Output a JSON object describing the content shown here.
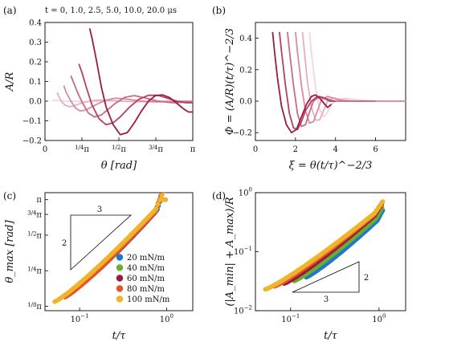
{
  "chart_data": [
    {
      "panel_label": "(a)",
      "type": "line",
      "caption": "t = 0, 1.0, 2.5, 5.0, 10.0, 20.0 μs",
      "xlabel": "θ [rad]",
      "ylabel": "A/R",
      "xlim": [
        0,
        3.1416
      ],
      "ylim": [
        -0.2,
        0.4
      ],
      "x_ticks": [
        {
          "v": 0,
          "w": "0"
        },
        {
          "v": 0.7854,
          "w": "π",
          "f": "1/4"
        },
        {
          "v": 1.5708,
          "w": "π",
          "f": "1/2"
        },
        {
          "v": 2.3562,
          "w": "π",
          "f": "3/4"
        },
        {
          "v": 3.1416,
          "w": "π"
        }
      ],
      "y_ticks": [
        {
          "v": 0.4,
          "t": "0.4"
        },
        {
          "v": 0.3,
          "t": "0.3"
        },
        {
          "v": 0.2,
          "t": "0.2"
        },
        {
          "v": 0.1,
          "t": "0.1"
        },
        {
          "v": 0.0,
          "t": "0.0"
        },
        {
          "v": -0.1,
          "t": "−0.1"
        },
        {
          "v": -0.2,
          "t": "−0.2"
        }
      ],
      "series": [
        {
          "color": "#f3d6dd",
          "x": [
            0.16,
            0.2,
            0.25,
            0.32,
            0.4,
            0.5,
            0.65,
            0.8,
            1.0,
            1.2,
            1.4,
            1.6,
            1.8,
            2.0,
            2.2,
            2.4,
            2.6,
            2.8,
            3.0,
            3.14
          ],
          "y": [
            0.005,
            0.005,
            0.004,
            0.002,
            0.001,
            0.0,
            -0.001,
            -0.002,
            -0.002,
            -0.001,
            0.0,
            0.001,
            0.0,
            0.0,
            0.0,
            0.0,
            0.0,
            0.0,
            0.0,
            0.0
          ]
        },
        {
          "color": "#e8aebe",
          "x": [
            0.26,
            0.3,
            0.36,
            0.44,
            0.52,
            0.62,
            0.75,
            0.9,
            1.05,
            1.25,
            1.5,
            1.8,
            2.1,
            2.4,
            2.7,
            3.0,
            3.14
          ],
          "y": [
            0.045,
            0.02,
            -0.005,
            -0.022,
            -0.028,
            -0.024,
            -0.012,
            -0.002,
            0.004,
            0.005,
            0.002,
            -0.002,
            -0.003,
            -0.001,
            0.0,
            0.0,
            0.0
          ]
        },
        {
          "color": "#d98aa2",
          "x": [
            0.4,
            0.45,
            0.55,
            0.65,
            0.75,
            0.87,
            1.0,
            1.15,
            1.3,
            1.5,
            1.7,
            2.0,
            2.3,
            2.6,
            3.0,
            3.14
          ],
          "y": [
            0.08,
            0.045,
            0.0,
            -0.035,
            -0.05,
            -0.045,
            -0.028,
            -0.01,
            0.005,
            0.015,
            0.012,
            0.002,
            -0.004,
            -0.003,
            0.0,
            0.0
          ]
        },
        {
          "color": "#c86b85",
          "x": [
            0.55,
            0.6,
            0.7,
            0.8,
            0.92,
            1.05,
            1.2,
            1.35,
            1.5,
            1.7,
            1.9,
            2.1,
            2.4,
            2.7,
            3.0,
            3.14
          ],
          "y": [
            0.13,
            0.1,
            0.04,
            -0.01,
            -0.06,
            -0.08,
            -0.07,
            -0.04,
            -0.01,
            0.02,
            0.028,
            0.018,
            0.0,
            -0.008,
            -0.005,
            -0.004
          ]
        },
        {
          "color": "#b3405f",
          "x": [
            0.72,
            0.78,
            0.88,
            1.0,
            1.15,
            1.3,
            1.45,
            1.6,
            1.8,
            2.0,
            2.2,
            2.4,
            2.6,
            2.8,
            3.0,
            3.14
          ],
          "y": [
            0.19,
            0.15,
            0.07,
            -0.02,
            -0.09,
            -0.12,
            -0.11,
            -0.08,
            -0.03,
            0.01,
            0.03,
            0.03,
            0.015,
            0.0,
            -0.008,
            -0.008
          ]
        },
        {
          "color": "#9b1b3e",
          "x": [
            0.95,
            1.0,
            1.1,
            1.2,
            1.3,
            1.45,
            1.6,
            1.75,
            1.9,
            2.05,
            2.2,
            2.35,
            2.5,
            2.65,
            2.8,
            2.95,
            3.05,
            3.14
          ],
          "y": [
            0.37,
            0.32,
            0.2,
            0.07,
            -0.03,
            -0.12,
            -0.17,
            -0.16,
            -0.11,
            -0.05,
            0.0,
            0.028,
            0.032,
            0.018,
            -0.01,
            -0.04,
            -0.055,
            -0.055
          ]
        }
      ]
    },
    {
      "panel_label": "(b)",
      "type": "line",
      "xlabel": "ξ = θ(t/τ)^−2/3",
      "ylabel": "Φ = (A/R)(t/τ)^−2/3",
      "xlim": [
        0,
        7.5
      ],
      "ylim": [
        -0.25,
        0.5
      ],
      "x_ticks": [
        {
          "v": 0,
          "t": "0"
        },
        {
          "v": 2,
          "t": "2"
        },
        {
          "v": 4,
          "t": "4"
        },
        {
          "v": 6,
          "t": "6"
        }
      ],
      "y_ticks": [
        {
          "v": 0.4,
          "t": "0.4"
        },
        {
          "v": 0.2,
          "t": "0.2"
        },
        {
          "v": 0.0,
          "t": "0.0"
        },
        {
          "v": -0.2,
          "t": "−0.2"
        }
      ],
      "series": [
        {
          "color": "#f3d6dd",
          "x": [
            2.7,
            2.8,
            3.0,
            3.2,
            3.4,
            3.6,
            3.8,
            4.0,
            4.5,
            5.0,
            6.0,
            7.0,
            7.5
          ],
          "y": [
            0.44,
            0.3,
            0.09,
            -0.05,
            -0.1,
            -0.07,
            -0.02,
            0.0,
            0.02,
            0.01,
            0.0,
            0.0,
            0.0
          ]
        },
        {
          "color": "#e8aebe",
          "x": [
            2.35,
            2.45,
            2.6,
            2.8,
            3.0,
            3.2,
            3.4,
            3.6,
            3.9,
            4.3,
            5.0,
            6.0,
            7.0,
            7.5
          ],
          "y": [
            0.44,
            0.31,
            0.12,
            -0.04,
            -0.12,
            -0.12,
            -0.06,
            0.0,
            0.02,
            0.01,
            0.0,
            0.0,
            0.0,
            0.0
          ]
        },
        {
          "color": "#d98aa2",
          "x": [
            2.0,
            2.1,
            2.3,
            2.5,
            2.7,
            2.9,
            3.1,
            3.3,
            3.6,
            4.0,
            4.5,
            5.5,
            6.5,
            7.5
          ],
          "y": [
            0.44,
            0.31,
            0.1,
            -0.06,
            -0.14,
            -0.13,
            -0.06,
            0.01,
            0.03,
            0.015,
            0.0,
            0.0,
            0.0,
            0.0
          ]
        },
        {
          "color": "#c86b85",
          "x": [
            1.6,
            1.7,
            1.9,
            2.1,
            2.3,
            2.5,
            2.7,
            2.9,
            3.2,
            3.5,
            3.9,
            4.4,
            5.0,
            6.0
          ],
          "y": [
            0.44,
            0.32,
            0.1,
            -0.08,
            -0.16,
            -0.15,
            -0.07,
            0.0,
            0.03,
            0.02,
            0.0,
            0.0,
            0.0,
            0.0
          ]
        },
        {
          "color": "#b3405f",
          "x": [
            1.2,
            1.3,
            1.5,
            1.7,
            1.9,
            2.1,
            2.3,
            2.5,
            2.8,
            3.1,
            3.4,
            3.7,
            4.0
          ],
          "y": [
            0.44,
            0.32,
            0.1,
            -0.08,
            -0.17,
            -0.18,
            -0.13,
            -0.06,
            0.0,
            0.03,
            0.02,
            0.0,
            0.0
          ]
        },
        {
          "color": "#9b1b3e",
          "x": [
            0.86,
            0.95,
            1.1,
            1.3,
            1.55,
            1.8,
            2.05,
            2.3,
            2.55,
            2.8,
            3.0,
            3.2,
            3.4,
            3.6,
            3.8
          ],
          "y": [
            0.44,
            0.32,
            0.15,
            -0.03,
            -0.15,
            -0.2,
            -0.18,
            -0.1,
            -0.02,
            0.03,
            0.04,
            0.02,
            -0.01,
            -0.04,
            -0.02
          ]
        }
      ]
    },
    {
      "panel_label": "(c)",
      "type": "scatter",
      "xlabel": "t/τ",
      "ylabel": "θ_max [rad]",
      "x_scale": "log",
      "y_scale": "log",
      "xlim": [
        0.04,
        2.0
      ],
      "ylim": [
        0.36,
        3.6
      ],
      "x_ticks": [
        {
          "v": 0.1,
          "b": "10",
          "e": "−1"
        },
        {
          "v": 1.0,
          "b": "10",
          "e": "0"
        }
      ],
      "y_ticks": [
        {
          "v": 3.1416,
          "w": "π"
        },
        {
          "v": 2.3562,
          "w": "π",
          "f": "3/4"
        },
        {
          "v": 1.5708,
          "w": "π",
          "f": "1/2"
        },
        {
          "v": 0.7854,
          "w": "π",
          "f": "1/4"
        },
        {
          "v": 0.3927,
          "w": "π",
          "f": "1/8"
        }
      ],
      "legend": "lower-right",
      "slope_triangle": "2",
      "slope_base": "3",
      "series": [
        {
          "name": "20 mN/m",
          "color": "#1f78c8",
          "x_range": [
            0.16,
            0.88
          ],
          "y_range": [
            0.82,
            2.85
          ]
        },
        {
          "name": "40 mN/m",
          "color": "#6aae2f",
          "x_range": [
            0.11,
            0.86
          ],
          "y_range": [
            0.64,
            2.8
          ]
        },
        {
          "name": "60 mN/m",
          "color": "#9b1b3e",
          "x_range": [
            0.085,
            0.86
          ],
          "y_range": [
            0.54,
            2.78
          ]
        },
        {
          "name": "80 mN/m",
          "color": "#e2572a",
          "x_range": [
            0.068,
            0.88
          ],
          "y_range": [
            0.47,
            2.85
          ]
        },
        {
          "name": "100 mN/m",
          "color": "#f0b42a",
          "x_range": [
            0.052,
            0.92
          ],
          "y_range": [
            0.43,
            3.05
          ]
        }
      ]
    },
    {
      "panel_label": "(d)",
      "type": "scatter",
      "xlabel": "t/τ",
      "ylabel": "(|A_min| + A_max)/R",
      "x_scale": "log",
      "y_scale": "log",
      "xlim": [
        0.04,
        2.0
      ],
      "ylim": [
        0.01,
        1.0
      ],
      "x_ticks": [
        {
          "v": 0.1,
          "b": "10",
          "e": "−1"
        },
        {
          "v": 1.0,
          "b": "10",
          "e": "0"
        }
      ],
      "y_ticks": [
        {
          "v": 1.0,
          "b": "10",
          "e": "0"
        },
        {
          "v": 0.1,
          "b": "10",
          "e": "−1"
        },
        {
          "v": 0.01,
          "b": "10",
          "e": "−2"
        }
      ],
      "slope_triangle": "2",
      "slope_base": "3",
      "series": [
        {
          "name": "20 mN/m",
          "color": "#1f78c8",
          "x_range": [
            0.15,
            1.1
          ],
          "y_range": [
            0.037,
            0.41
          ]
        },
        {
          "name": "40 mN/m",
          "color": "#6aae2f",
          "x_range": [
            0.11,
            1.08
          ],
          "y_range": [
            0.032,
            0.45
          ]
        },
        {
          "name": "60 mN/m",
          "color": "#9b1b3e",
          "x_range": [
            0.085,
            1.07
          ],
          "y_range": [
            0.029,
            0.52
          ]
        },
        {
          "name": "80 mN/m",
          "color": "#e2572a",
          "x_range": [
            0.066,
            1.08
          ],
          "y_range": [
            0.026,
            0.55
          ]
        },
        {
          "name": "100 mN/m",
          "color": "#f0b42a",
          "x_range": [
            0.052,
            1.1
          ],
          "y_range": [
            0.023,
            0.58
          ]
        }
      ]
    }
  ]
}
